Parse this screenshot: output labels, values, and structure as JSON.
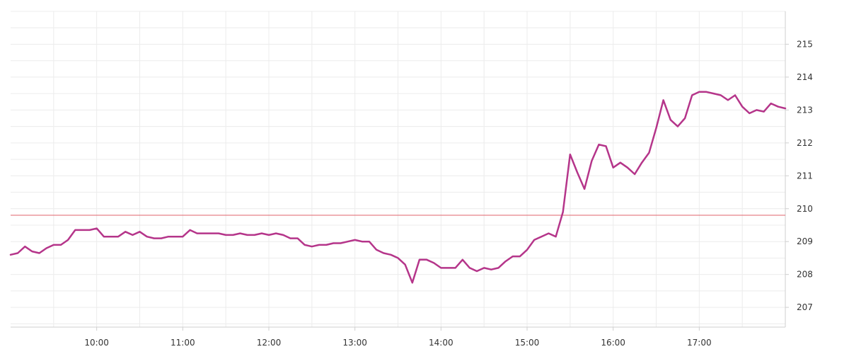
{
  "chart_data": {
    "type": "line",
    "title": "",
    "xlabel": "",
    "ylabel": "",
    "grid": true,
    "xlim": [
      "09:00",
      "18:00"
    ],
    "ylim": [
      206.4,
      216.0
    ],
    "x_ticks": [
      "10:00",
      "11:00",
      "12:00",
      "13:00",
      "14:00",
      "15:00",
      "16:00",
      "17:00"
    ],
    "y_ticks": [
      207,
      208,
      209,
      210,
      211,
      212,
      213,
      214,
      215
    ],
    "reference_line": {
      "value": 209.8
    },
    "colors": {
      "line": "#b5358a",
      "reference": "#e0636b"
    },
    "series": [
      {
        "x": [
          "09:00",
          "09:05",
          "09:10",
          "09:15",
          "09:20",
          "09:25",
          "09:30",
          "09:35",
          "09:40",
          "09:45",
          "09:50",
          "09:55",
          "10:00",
          "10:05",
          "10:10",
          "10:15",
          "10:20",
          "10:25",
          "10:30",
          "10:35",
          "10:40",
          "10:45",
          "10:50",
          "10:55",
          "11:00",
          "11:05",
          "11:10",
          "11:15",
          "11:20",
          "11:25",
          "11:30",
          "11:35",
          "11:40",
          "11:45",
          "11:50",
          "11:55",
          "12:00",
          "12:05",
          "12:10",
          "12:15",
          "12:20",
          "12:25",
          "12:30",
          "12:35",
          "12:40",
          "12:45",
          "12:50",
          "12:55",
          "13:00",
          "13:05",
          "13:10",
          "13:15",
          "13:20",
          "13:25",
          "13:30",
          "13:35",
          "13:40",
          "13:45",
          "13:50",
          "13:55",
          "14:00",
          "14:05",
          "14:10",
          "14:15",
          "14:20",
          "14:25",
          "14:30",
          "14:35",
          "14:40",
          "14:45",
          "14:50",
          "14:55",
          "15:00",
          "15:05",
          "15:10",
          "15:15",
          "15:20",
          "15:25",
          "15:30",
          "15:35",
          "15:40",
          "15:45",
          "15:50",
          "15:55",
          "16:00",
          "16:05",
          "16:10",
          "16:15",
          "16:20",
          "16:25",
          "16:30",
          "16:35",
          "16:40",
          "16:45",
          "16:50",
          "16:55",
          "17:00",
          "17:05",
          "17:10",
          "17:15",
          "17:20",
          "17:25",
          "17:30",
          "17:35",
          "17:40",
          "17:45",
          "17:50",
          "17:55",
          "18:00"
        ],
        "values": [
          208.6,
          208.65,
          208.85,
          208.7,
          208.65,
          208.8,
          208.9,
          208.9,
          209.05,
          209.35,
          209.35,
          209.35,
          209.4,
          209.15,
          209.15,
          209.15,
          209.3,
          209.2,
          209.3,
          209.15,
          209.1,
          209.1,
          209.15,
          209.15,
          209.15,
          209.35,
          209.25,
          209.25,
          209.25,
          209.25,
          209.2,
          209.2,
          209.25,
          209.2,
          209.2,
          209.25,
          209.2,
          209.25,
          209.2,
          209.1,
          209.1,
          208.9,
          208.85,
          208.9,
          208.9,
          208.95,
          208.95,
          209.0,
          209.05,
          209.0,
          209.0,
          208.75,
          208.65,
          208.6,
          208.5,
          208.3,
          207.75,
          208.45,
          208.45,
          208.35,
          208.2,
          208.2,
          208.2,
          208.45,
          208.2,
          208.1,
          208.2,
          208.15,
          208.2,
          208.4,
          208.55,
          208.55,
          208.75,
          209.05,
          209.15,
          209.25,
          209.15,
          209.9,
          211.65,
          211.1,
          210.6,
          211.45,
          211.95,
          211.9,
          211.25,
          211.4,
          211.25,
          211.05,
          211.4,
          211.7,
          212.45,
          213.3,
          212.7,
          212.5,
          212.75,
          213.45,
          213.55,
          213.55,
          213.5,
          213.45,
          213.3,
          213.45,
          213.1,
          212.9,
          213.0,
          212.95,
          213.2,
          213.1,
          213.05
        ]
      }
    ]
  }
}
